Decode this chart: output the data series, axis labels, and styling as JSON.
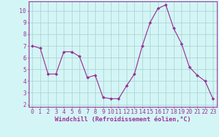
{
  "x": [
    0,
    1,
    2,
    3,
    4,
    5,
    6,
    7,
    8,
    9,
    10,
    11,
    12,
    13,
    14,
    15,
    16,
    17,
    18,
    19,
    20,
    21,
    22,
    23
  ],
  "y": [
    7.0,
    6.8,
    4.6,
    4.6,
    6.5,
    6.5,
    6.1,
    4.3,
    4.5,
    2.6,
    2.5,
    2.5,
    3.6,
    4.6,
    7.0,
    9.0,
    10.2,
    10.5,
    8.5,
    7.2,
    5.2,
    4.5,
    4.0,
    2.5
  ],
  "line_color": "#993399",
  "marker": "D",
  "marker_size": 2,
  "background_color": "#d4f5f5",
  "grid_color": "#aad4d4",
  "xlabel": "Windchill (Refroidissement éolien,°C)",
  "ylabel": "",
  "xlim": [
    -0.5,
    23.5
  ],
  "ylim": [
    1.8,
    10.8
  ],
  "yticks": [
    2,
    3,
    4,
    5,
    6,
    7,
    8,
    9,
    10
  ],
  "xticks": [
    0,
    1,
    2,
    3,
    4,
    5,
    6,
    7,
    8,
    9,
    10,
    11,
    12,
    13,
    14,
    15,
    16,
    17,
    18,
    19,
    20,
    21,
    22,
    23
  ],
  "tick_color": "#993399",
  "spine_color": "#993399",
  "font_size": 6,
  "xlabel_fontsize": 6.5
}
